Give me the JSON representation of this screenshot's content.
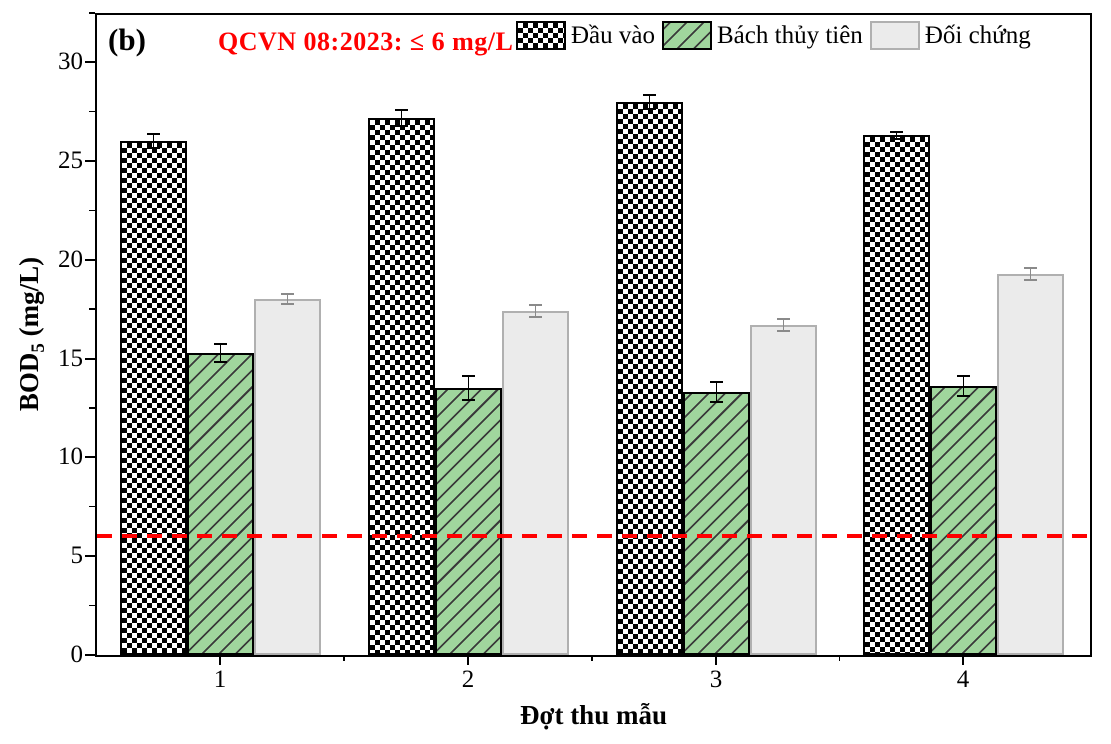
{
  "figure": {
    "panel_label": "(b)",
    "colors": {
      "accent_red": "#ff0000",
      "checkered_black": "#000000",
      "green_fill": "#a0d69d",
      "hatch_line": "#3a3a3a",
      "gray_fill": "#ebebeb",
      "gray_border": "#b0b0b0",
      "gray_error_bar": "#8a8a8a",
      "axis": "#000000"
    }
  },
  "chart_data": {
    "type": "bar",
    "title": "",
    "categories": [
      "1",
      "2",
      "3",
      "4"
    ],
    "series": [
      {
        "name": "Đầu vào",
        "style": "checkered",
        "values": [
          26.0,
          27.2,
          28.0,
          26.3
        ],
        "errors": [
          0.35,
          0.4,
          0.35,
          0.2
        ]
      },
      {
        "name": "Bách thủy tiên",
        "style": "green-hatch",
        "values": [
          15.3,
          13.5,
          13.3,
          13.6
        ],
        "errors": [
          0.45,
          0.6,
          0.5,
          0.5
        ]
      },
      {
        "name": "Đối chứng",
        "style": "gray",
        "values": [
          18.0,
          17.4,
          16.7,
          19.3
        ],
        "errors": [
          0.25,
          0.3,
          0.3,
          0.3
        ]
      }
    ],
    "threshold": {
      "value": 6,
      "label": "QCVN 08:2023: ≤ 6 mg/L"
    },
    "xlabel": "Đợt thu mẫu",
    "ylabel": "BOD5 (mg/L)",
    "ylabel_parts": {
      "main": "BOD",
      "sub": "5",
      "unit": " (mg/L)"
    },
    "ylim": [
      0,
      32.6
    ],
    "yticks": [
      0,
      5,
      10,
      15,
      20,
      25,
      30
    ],
    "yminor_step": 2.5,
    "grid": false,
    "legend_position": "top-right",
    "error_bars": true
  }
}
